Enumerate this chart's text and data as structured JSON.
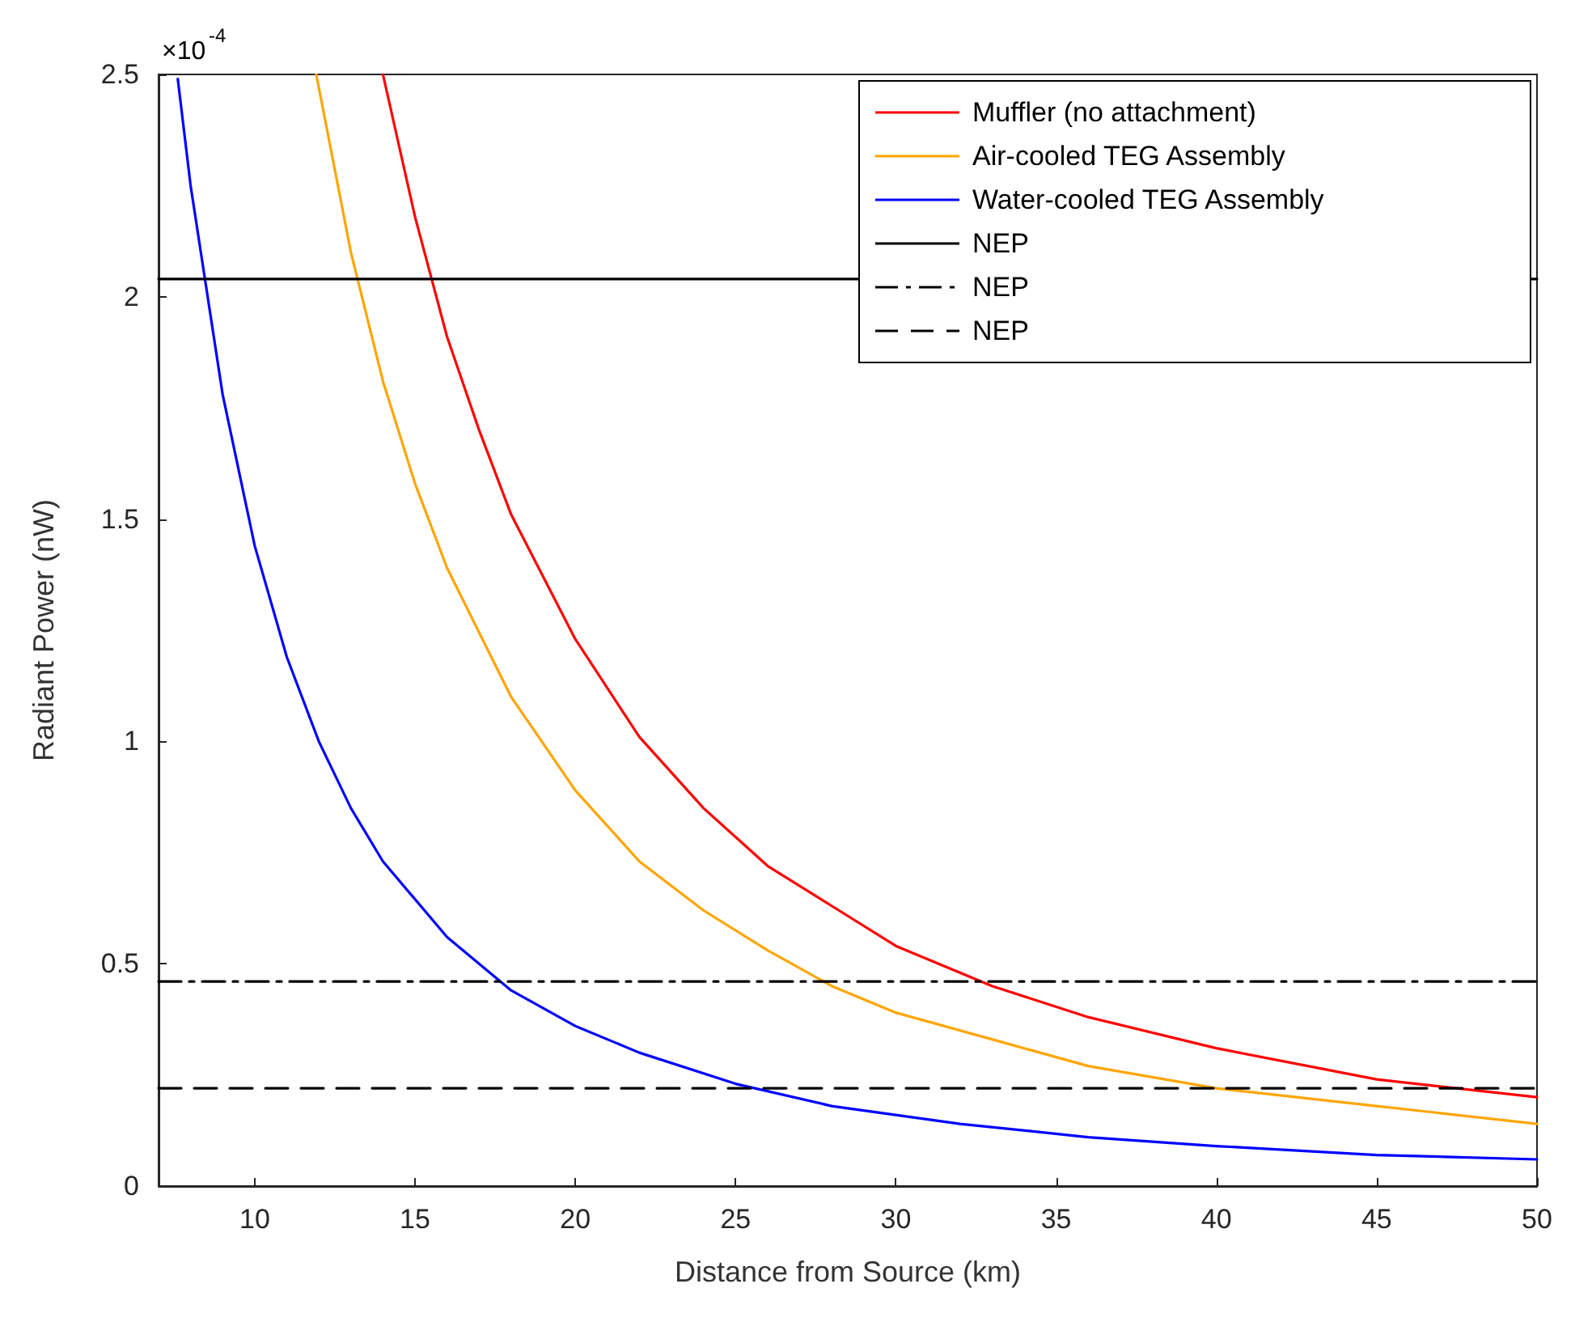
{
  "chart_data": {
    "type": "line",
    "xlabel": "Distance from Source (km)",
    "ylabel": "Radiant Power (nW)",
    "annotations": [
      "×10$^{-4}$"
    ],
    "xlim": [
      7,
      50
    ],
    "xticks": [
      10,
      15,
      20,
      25,
      30,
      35,
      40,
      45,
      50
    ],
    "ylim": [
      0,
      2.5
    ],
    "yticks": [
      0,
      0.5,
      1,
      1.5,
      2,
      2.5
    ],
    "grid": false,
    "legend": "top right",
    "marker": "none",
    "series": [
      {
        "name": "Muffler (no attachment)",
        "color": "#ff0000",
        "line_style": "solid",
        "x": [
          14,
          15,
          16,
          17,
          18,
          20,
          22,
          24,
          26,
          28,
          30,
          33,
          36,
          40,
          45,
          50
        ],
        "values": [
          2.5,
          2.18,
          1.91,
          1.7,
          1.51,
          1.23,
          1.01,
          0.85,
          0.72,
          0.63,
          0.54,
          0.45,
          0.38,
          0.31,
          0.24,
          0.2
        ]
      },
      {
        "name": "Air-cooled TEG Assembly",
        "color": "#ffa500",
        "line_style": "solid",
        "x": [
          11.92,
          13,
          14,
          15,
          16,
          18,
          20,
          22,
          24,
          26,
          28,
          30,
          33,
          36,
          40,
          45,
          50
        ],
        "values": [
          2.5,
          2.1,
          1.81,
          1.58,
          1.39,
          1.1,
          0.89,
          0.73,
          0.62,
          0.53,
          0.45,
          0.39,
          0.33,
          0.27,
          0.22,
          0.18,
          0.14
        ]
      },
      {
        "name": "Water-cooled TEG Assembly",
        "color": "#0000ff",
        "line_style": "solid",
        "x": [
          7.6,
          8,
          9,
          10,
          11,
          12,
          13,
          14,
          16,
          18,
          20,
          22,
          25,
          28,
          32,
          36,
          40,
          45,
          50
        ],
        "values": [
          2.49,
          2.25,
          1.78,
          1.44,
          1.19,
          1.0,
          0.85,
          0.73,
          0.56,
          0.44,
          0.36,
          0.3,
          0.23,
          0.18,
          0.14,
          0.11,
          0.09,
          0.07,
          0.06
        ]
      },
      {
        "name": "NEP",
        "color": "#000000",
        "line_style": "solid",
        "x": [
          7,
          50
        ],
        "values": [
          2.04,
          2.04
        ]
      },
      {
        "name": "NEP",
        "color": "#000000",
        "line_style": "dashdot",
        "x": [
          7,
          50
        ],
        "values": [
          0.46,
          0.46
        ]
      },
      {
        "name": "NEP",
        "color": "#000000",
        "line_style": "dashed",
        "x": [
          7,
          50
        ],
        "values": [
          0.22,
          0.22
        ]
      }
    ]
  }
}
